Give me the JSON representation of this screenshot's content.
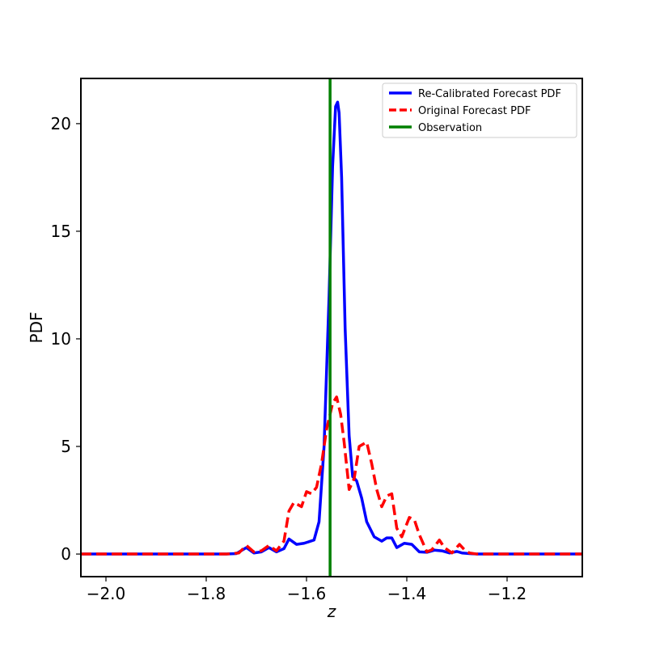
{
  "chart_data": {
    "type": "line",
    "title": "",
    "xlabel": "z",
    "ylabel": "PDF",
    "xlim": [
      -2.05,
      -1.05
    ],
    "ylim": [
      -1.05,
      22.1
    ],
    "xticks": [
      -2.0,
      -1.8,
      -1.6,
      -1.4,
      -1.2
    ],
    "xtick_labels": [
      "−2.0",
      "−1.8",
      "−1.6",
      "−1.4",
      "−1.2"
    ],
    "yticks": [
      0,
      5,
      10,
      15,
      20
    ],
    "ytick_labels": [
      "0",
      "5",
      "10",
      "15",
      "20"
    ],
    "grid": false,
    "legend_position": "top-right",
    "series": [
      {
        "name": "Re-Calibrated Forecast PDF",
        "color": "#0000ff",
        "style": "solid",
        "x": [
          -2.05,
          -1.76,
          -1.74,
          -1.72,
          -1.705,
          -1.69,
          -1.675,
          -1.66,
          -1.645,
          -1.635,
          -1.62,
          -1.605,
          -1.585,
          -1.575,
          -1.565,
          -1.555,
          -1.548,
          -1.542,
          -1.538,
          -1.535,
          -1.53,
          -1.523,
          -1.515,
          -1.508,
          -1.5,
          -1.49,
          -1.48,
          -1.465,
          -1.45,
          -1.44,
          -1.43,
          -1.42,
          -1.405,
          -1.39,
          -1.375,
          -1.36,
          -1.345,
          -1.33,
          -1.315,
          -1.3,
          -1.29,
          -1.275,
          -1.26,
          -1.05
        ],
        "y": [
          0,
          0,
          0.02,
          0.3,
          0.05,
          0.1,
          0.3,
          0.1,
          0.25,
          0.7,
          0.45,
          0.5,
          0.65,
          1.5,
          5.0,
          12.0,
          18.0,
          20.8,
          21.0,
          20.5,
          17.5,
          10.5,
          5.5,
          3.6,
          3.4,
          2.6,
          1.5,
          0.8,
          0.6,
          0.75,
          0.75,
          0.3,
          0.5,
          0.45,
          0.1,
          0.08,
          0.18,
          0.15,
          0.05,
          0.12,
          0.05,
          0.02,
          0.0,
          0.0
        ]
      },
      {
        "name": "Original Forecast PDF",
        "color": "#ff0000",
        "style": "dashed",
        "x": [
          -2.05,
          -1.76,
          -1.735,
          -1.72,
          -1.705,
          -1.69,
          -1.675,
          -1.66,
          -1.645,
          -1.635,
          -1.625,
          -1.61,
          -1.6,
          -1.59,
          -1.58,
          -1.57,
          -1.56,
          -1.548,
          -1.54,
          -1.532,
          -1.525,
          -1.515,
          -1.505,
          -1.495,
          -1.48,
          -1.47,
          -1.46,
          -1.45,
          -1.44,
          -1.43,
          -1.42,
          -1.41,
          -1.395,
          -1.385,
          -1.375,
          -1.36,
          -1.35,
          -1.335,
          -1.325,
          -1.31,
          -1.295,
          -1.285,
          -1.275,
          -1.26,
          -1.05
        ],
        "y": [
          0,
          0,
          0.05,
          0.4,
          0.1,
          0.15,
          0.4,
          0.15,
          0.6,
          2.0,
          2.4,
          2.2,
          2.9,
          2.8,
          3.1,
          4.2,
          5.8,
          7.0,
          7.3,
          6.5,
          5.2,
          3.0,
          3.5,
          5.0,
          5.2,
          4.2,
          3.0,
          2.2,
          2.7,
          2.8,
          1.2,
          0.8,
          1.7,
          1.6,
          0.9,
          0.1,
          0.2,
          0.65,
          0.3,
          0.05,
          0.45,
          0.2,
          0.05,
          0.0,
          0.0
        ]
      },
      {
        "name": "Observation",
        "color": "#008000",
        "style": "vertical",
        "x_value": -1.553
      }
    ]
  }
}
